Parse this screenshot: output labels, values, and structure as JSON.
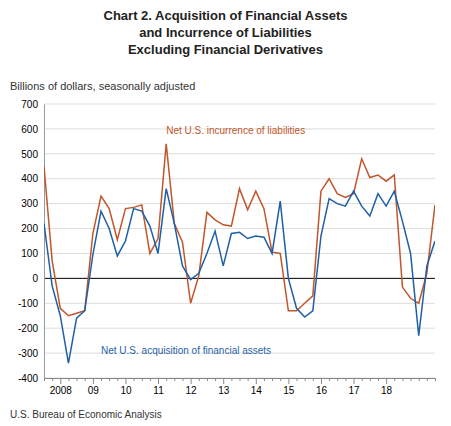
{
  "chart_data": {
    "type": "line",
    "title": [
      "Chart 2. Acquisition of Financial Assets",
      "and Incurrence of Liabilities",
      "Excluding Financial Derivatives"
    ],
    "subtitle": "Billions of dollars, seasonally adjusted",
    "annotations": [
      "U.S. Bureau of Economic Analysis"
    ],
    "categories": [
      null,
      null,
      "2008",
      null,
      null,
      null,
      "09",
      null,
      null,
      null,
      "10",
      null,
      null,
      null,
      "11",
      null,
      null,
      null,
      "12",
      null,
      null,
      null,
      "13",
      null,
      null,
      null,
      "14",
      null,
      null,
      null,
      "15",
      null,
      null,
      null,
      "16",
      null,
      null,
      null,
      "17",
      null,
      null,
      null,
      "18",
      null,
      null,
      null,
      null,
      null,
      null
    ],
    "series": [
      {
        "name": "Net U.S. incurrence of liabilities",
        "color": "#C0562A",
        "values": [
          450,
          70,
          -120,
          -150,
          -140,
          -130,
          180,
          330,
          280,
          155,
          280,
          285,
          295,
          100,
          160,
          540,
          220,
          145,
          -100,
          10,
          265,
          235,
          215,
          210,
          360,
          275,
          350,
          280,
          105,
          100,
          -130,
          -130,
          -100,
          -70,
          350,
          400,
          340,
          325,
          340,
          480,
          405,
          415,
          390,
          415,
          -35,
          -80,
          -100,
          20,
          295
        ]
      },
      {
        "name": "Net U.S. acquisition of financial assets",
        "color": "#1F5FA6",
        "values": [
          220,
          -30,
          -150,
          -340,
          -160,
          -130,
          95,
          270,
          200,
          90,
          150,
          280,
          270,
          210,
          100,
          360,
          220,
          50,
          -5,
          20,
          100,
          190,
          50,
          180,
          185,
          160,
          170,
          165,
          100,
          310,
          0,
          -120,
          -155,
          -130,
          170,
          320,
          300,
          290,
          350,
          290,
          250,
          340,
          290,
          350,
          230,
          100,
          -230,
          50,
          150
        ]
      }
    ],
    "ylim": [
      -400,
      700
    ],
    "yticks": [
      -400,
      -300,
      -200,
      -100,
      0,
      100,
      200,
      300,
      400,
      500,
      600,
      700
    ],
    "grid": true
  }
}
